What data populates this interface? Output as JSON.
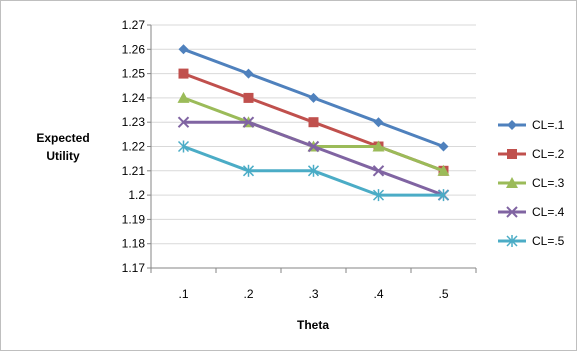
{
  "chart_data": {
    "type": "line",
    "title": "",
    "xlabel": "Theta",
    "ylabel": "Expected Utility",
    "categories": [
      ".1",
      ".2",
      ".3",
      ".4",
      ".5"
    ],
    "ylim": [
      1.17,
      1.27
    ],
    "ystep": 0.01,
    "ytick_labels": [
      "1.17",
      "1.18",
      "1.19",
      "1.2",
      "1.21",
      "1.22",
      "1.23",
      "1.24",
      "1.25",
      "1.26",
      "1.27"
    ],
    "grid": "horizontal",
    "legend_position": "right",
    "series": [
      {
        "name": "CL=.1",
        "color": "#4f81bd",
        "marker": "diamond",
        "values": [
          1.26,
          1.25,
          1.24,
          1.23,
          1.22
        ]
      },
      {
        "name": "CL=.2",
        "color": "#c0504d",
        "marker": "square",
        "values": [
          1.25,
          1.24,
          1.23,
          1.22,
          1.21
        ]
      },
      {
        "name": "CL=.3",
        "color": "#9bbb59",
        "marker": "triangle",
        "values": [
          1.24,
          1.23,
          1.22,
          1.22,
          1.21
        ]
      },
      {
        "name": "CL=.4",
        "color": "#8064a2",
        "marker": "x",
        "values": [
          1.23,
          1.23,
          1.22,
          1.21,
          1.2
        ]
      },
      {
        "name": "CL=.5",
        "color": "#4bacc6",
        "marker": "star",
        "values": [
          1.22,
          1.21,
          1.21,
          1.2,
          1.2
        ]
      }
    ]
  }
}
